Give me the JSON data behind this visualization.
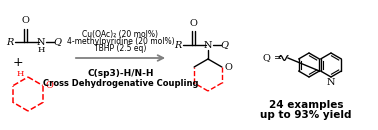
{
  "bg_color": "#ffffff",
  "arrow_color": "#7f7f7f",
  "red_color": "#ff0000",
  "black_color": "#000000",
  "reagents_line1": "Cu(OAc)₂ (20 mol%)",
  "reagents_line2": "4-methylpyridine (20 mol%)",
  "reagents_line3": "TBHP (2.5 eq)",
  "bottom_line1": "C(sp3)-H/N-H",
  "bottom_line2": "Cross Dehydrogenative Coupling",
  "examples_line1": "24 examples",
  "examples_line2": "up to 93% yield",
  "fig_width": 3.78,
  "fig_height": 1.3,
  "dpi": 100
}
